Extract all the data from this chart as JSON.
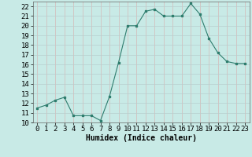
{
  "x": [
    0,
    1,
    2,
    3,
    4,
    5,
    6,
    7,
    8,
    9,
    10,
    11,
    12,
    13,
    14,
    15,
    16,
    17,
    18,
    19,
    20,
    21,
    22,
    23
  ],
  "y": [
    11.5,
    11.8,
    12.3,
    12.6,
    10.7,
    10.7,
    10.7,
    10.2,
    12.7,
    16.2,
    20.0,
    20.0,
    21.5,
    21.7,
    21.0,
    21.0,
    21.0,
    22.3,
    21.2,
    18.7,
    17.2,
    16.3,
    16.1,
    16.1
  ],
  "xlabel": "Humidex (Indice chaleur)",
  "ylim": [
    10,
    22.5
  ],
  "xlim": [
    -0.5,
    23.5
  ],
  "xticks": [
    0,
    1,
    2,
    3,
    4,
    5,
    6,
    7,
    8,
    9,
    10,
    11,
    12,
    13,
    14,
    15,
    16,
    17,
    18,
    19,
    20,
    21,
    22,
    23
  ],
  "yticks": [
    10,
    11,
    12,
    13,
    14,
    15,
    16,
    17,
    18,
    19,
    20,
    21,
    22
  ],
  "line_color": "#2e7d6e",
  "marker_color": "#2e7d6e",
  "bg_color": "#c8eae6",
  "plot_bg_color": "#c8eae6",
  "grid_color_major": "#b8cece",
  "grid_color_minor": "#d4b8b8",
  "xlabel_fontsize": 7,
  "tick_fontsize": 6.5
}
